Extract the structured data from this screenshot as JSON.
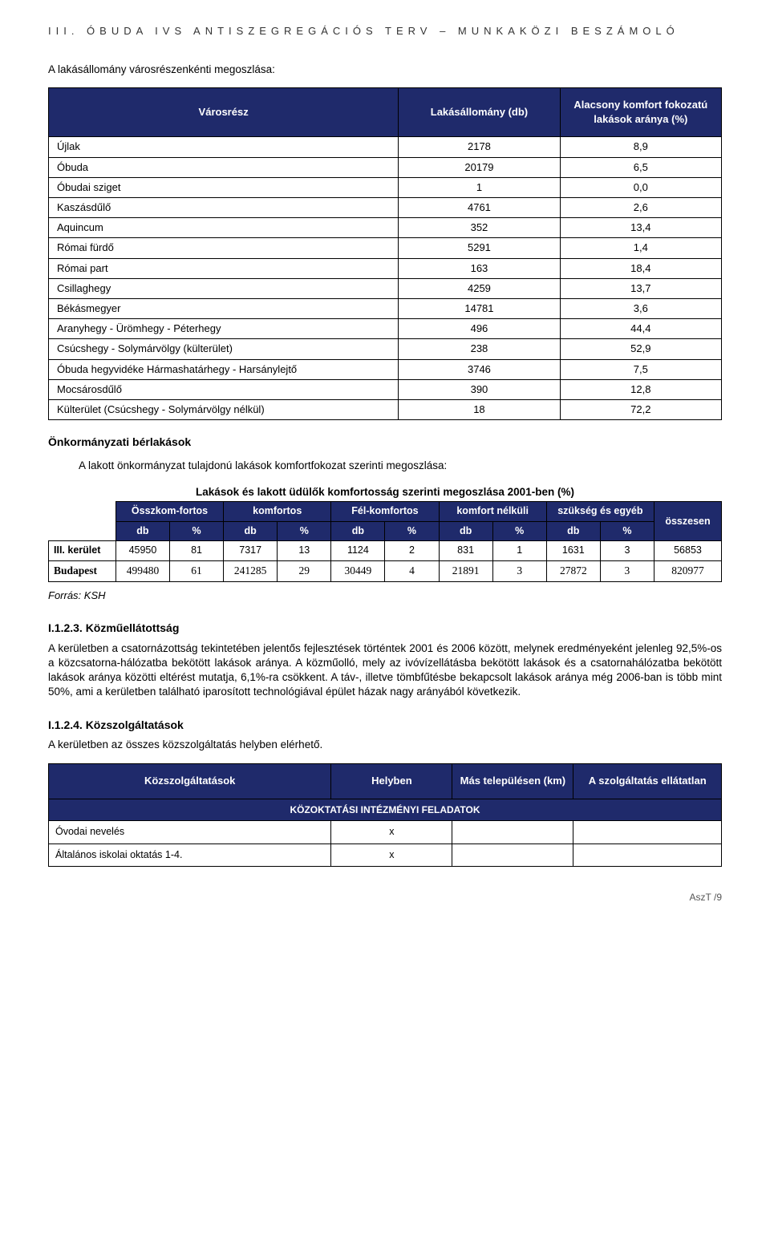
{
  "header": "III. ÓBUDA IVS ANTISZEGREGÁCIÓS TERV – MUNKAKÖZI BESZÁMOLÓ",
  "intro": "A lakásállomány városrészenkénti megoszlása:",
  "t1": {
    "headers": [
      "Városrész",
      "Lakásállomány (db)",
      "Alacsony komfort fokozatú lakások aránya (%)"
    ],
    "rows": [
      [
        "Újlak",
        "2178",
        "8,9"
      ],
      [
        "Óbuda",
        "20179",
        "6,5"
      ],
      [
        "Óbudai sziget",
        "1",
        "0,0"
      ],
      [
        "Kaszásdűlő",
        "4761",
        "2,6"
      ],
      [
        "Aquincum",
        "352",
        "13,4"
      ],
      [
        "Római fürdő",
        "5291",
        "1,4"
      ],
      [
        "Római part",
        "163",
        "18,4"
      ],
      [
        "Csillaghegy",
        "4259",
        "13,7"
      ],
      [
        "Békásmegyer",
        "14781",
        "3,6"
      ],
      [
        "Aranyhegy - Ürömhegy - Péterhegy",
        "496",
        "44,4"
      ],
      [
        "Csúcshegy - Solymárvölgy (külterület)",
        "238",
        "52,9"
      ],
      [
        "Óbuda hegyvidéke Hármashatárhegy - Harsánylejtő",
        "3746",
        "7,5"
      ],
      [
        "Mocsárosdűlő",
        "390",
        "12,8"
      ],
      [
        "Külterület (Csúcshegy - Solymárvölgy nélkül)",
        "18",
        "72,2"
      ]
    ]
  },
  "subhead1": "Önkormányzati bérlakások",
  "indent1": "A lakott önkormányzat tulajdonú lakások komfortfokozat szerinti megoszlása:",
  "caption2": "Lakások és lakott üdülők komfortosság szerinti megoszlása 2001-ben (%)",
  "t2": {
    "top": [
      "Összkom-fortos",
      "komfortos",
      "Fél-komfortos",
      "komfort nélküli",
      "szükség és egyéb"
    ],
    "osszesen": "összesen",
    "sub": [
      "db",
      "%",
      "db",
      "%",
      "db",
      "%",
      "db",
      "%",
      "db",
      "%"
    ],
    "rows": [
      {
        "label": "III. kerület",
        "cells": [
          "45950",
          "81",
          "7317",
          "13",
          "1124",
          "2",
          "831",
          "1",
          "1631",
          "3",
          "56853"
        ]
      },
      {
        "label": "Budapest",
        "cells": [
          "499480",
          "61",
          "241285",
          "29",
          "30449",
          "4",
          "21891",
          "3",
          "27872",
          "3",
          "820977"
        ]
      }
    ]
  },
  "source": "Forrás: KSH",
  "sec123": {
    "title": "I.1.2.3. Közműellátottság",
    "body": "A kerületben a csatornázottság tekintetében jelentős fejlesztések történtek 2001 és 2006 között, melynek eredményeként jelenleg 92,5%-os a közcsatorna-hálózatba bekötött lakások aránya. A közműolló, mely az ivóvízellátásba bekötött lakások és a csatornahálózatba bekötött lakások aránya közötti eltérést mutatja, 6,1%-ra csökkent. A táv-, illetve tömbfűtésbe bekapcsolt lakások aránya még 2006-ban is több mint 50%, ami a kerületben található iparosított technológiával épület házak nagy arányából következik."
  },
  "sec124": {
    "title": "I.1.2.4. Közszolgáltatások",
    "body": "A kerületben az összes közszolgáltatás helyben elérhető."
  },
  "t3": {
    "headers": [
      "Közszolgáltatások",
      "Helyben",
      "Más településen (km)",
      "A szolgáltatás ellátatlan"
    ],
    "sectionrow": "KÖZOKTATÁSI INTÉZMÉNYI FELADATOK",
    "rows": [
      [
        "Óvodai nevelés",
        "x",
        "",
        ""
      ],
      [
        "Általános iskolai oktatás 1-4.",
        "x",
        "",
        ""
      ]
    ]
  },
  "footer": "AszT /9"
}
